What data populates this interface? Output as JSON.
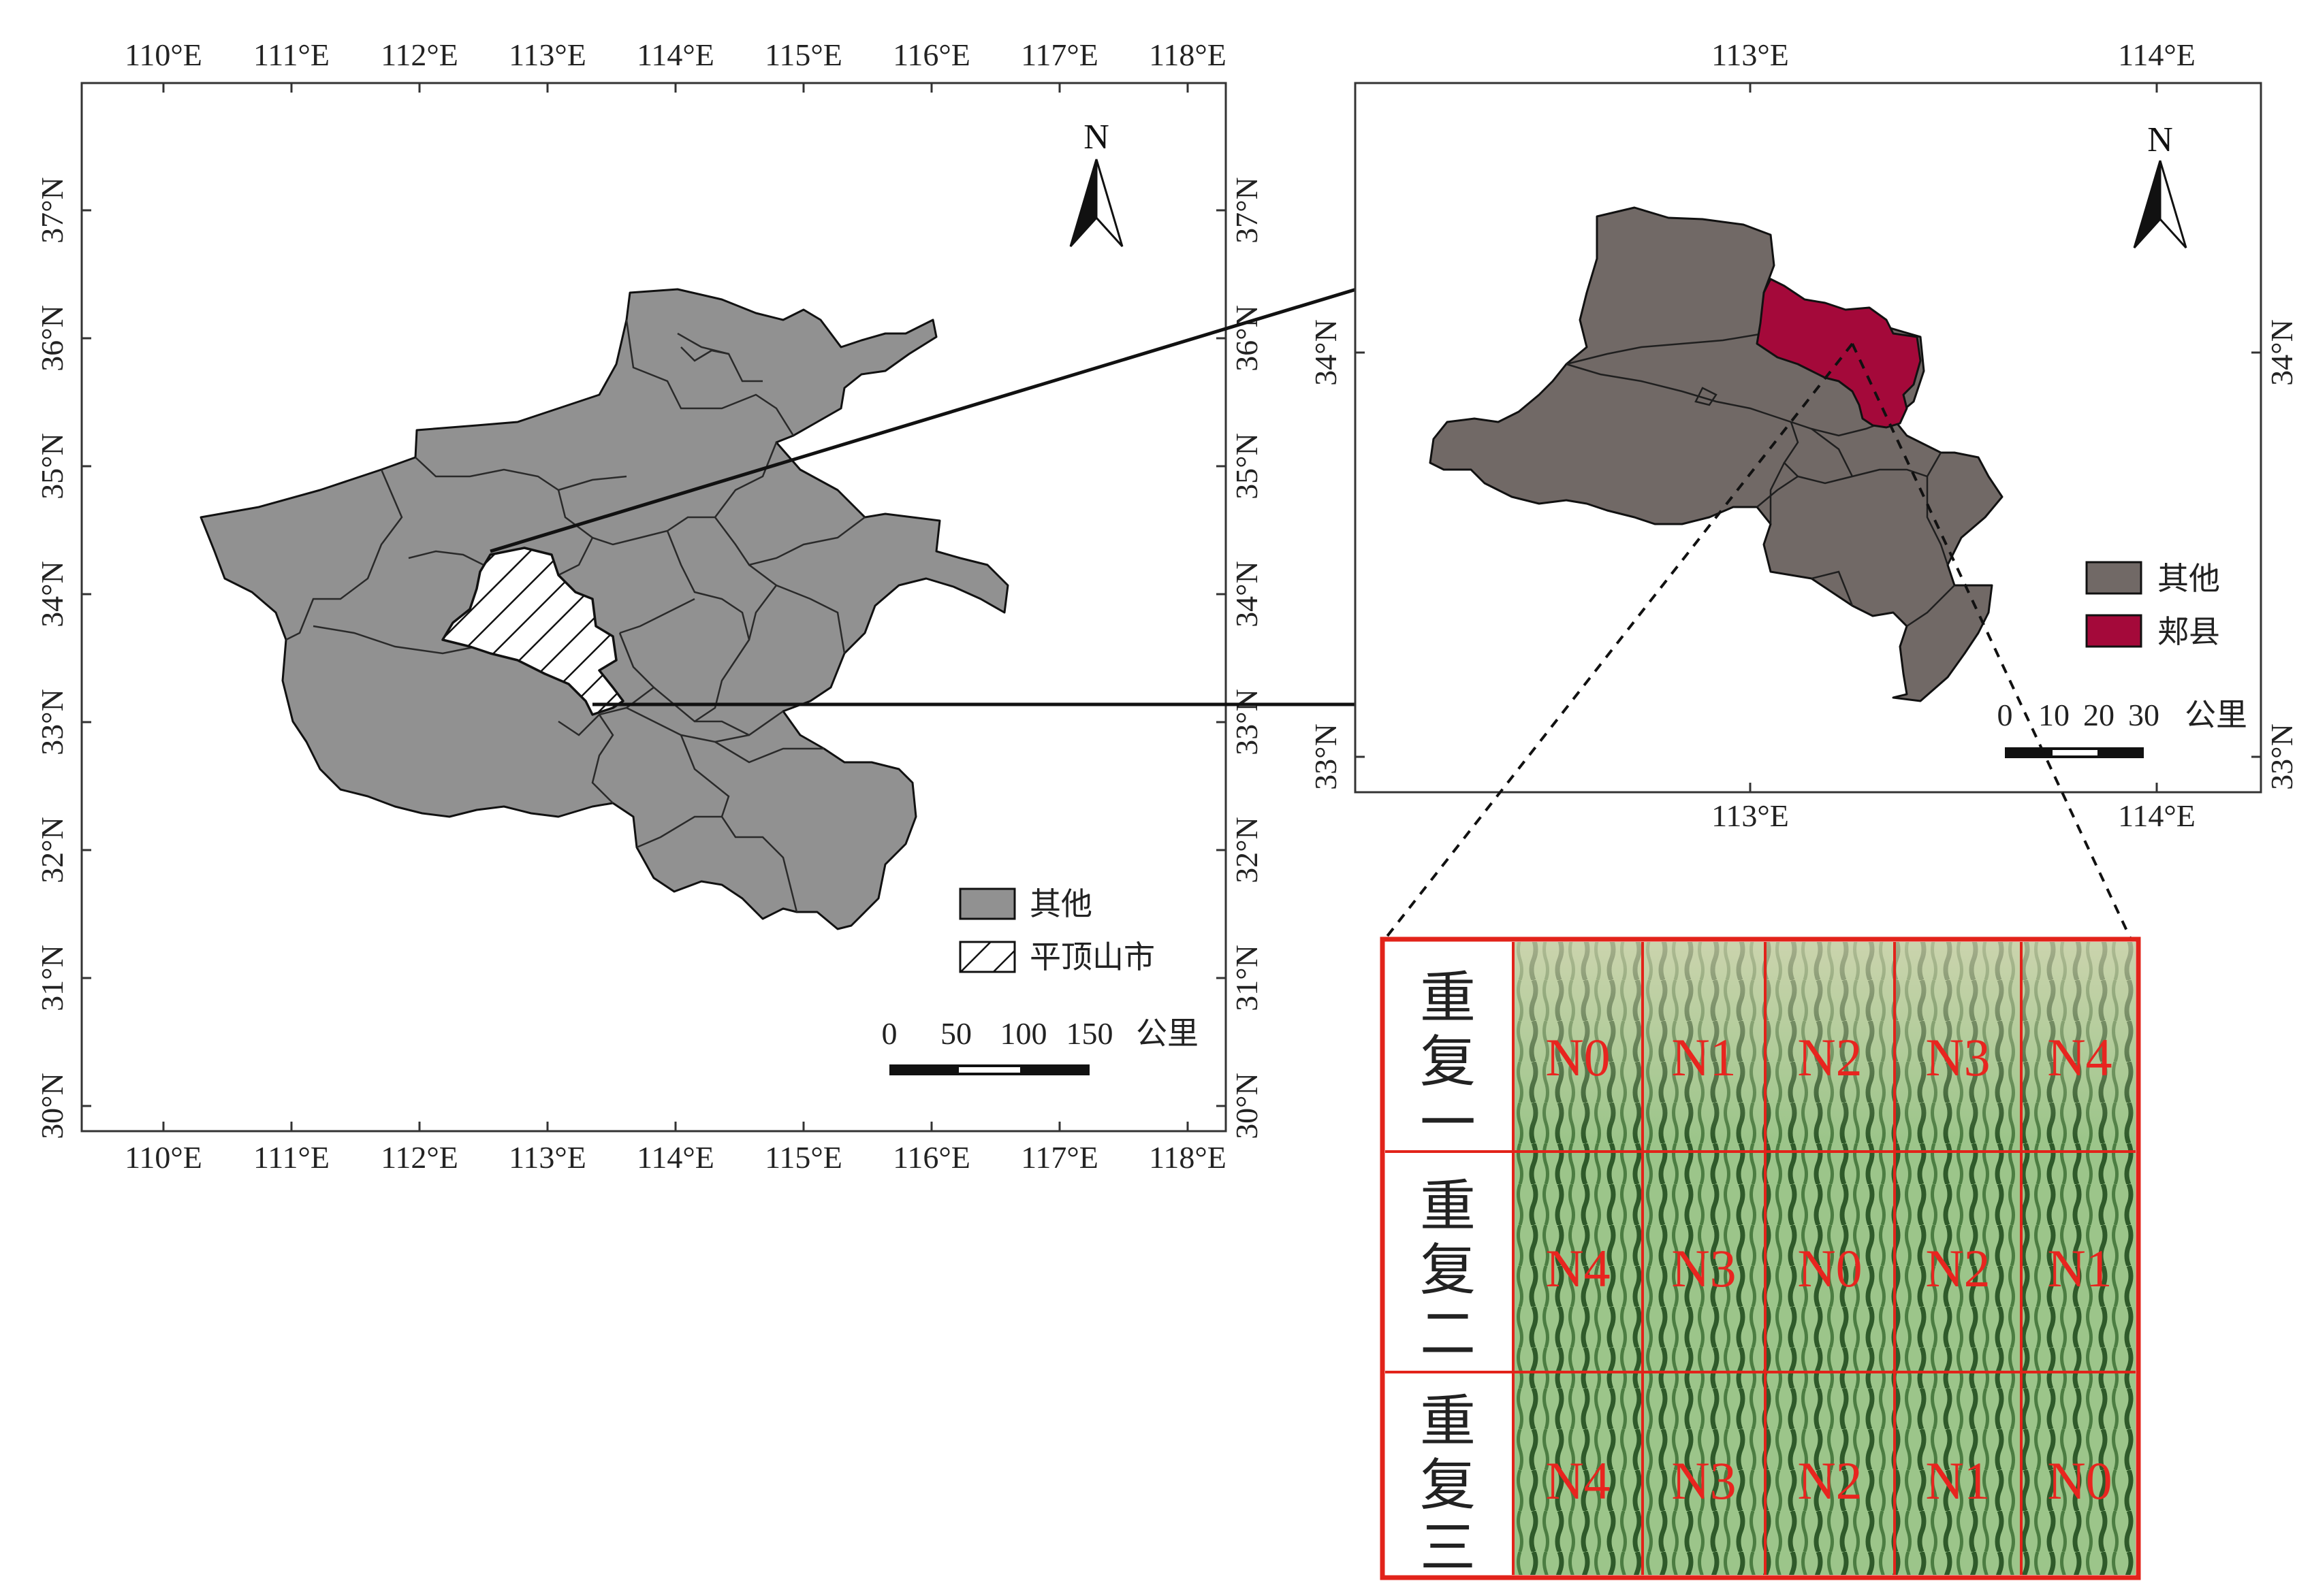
{
  "colors": {
    "other_region": "#919191",
    "zoom_region": "#716966",
    "jiaxian": "#a4093a",
    "grid_line": "#e2231a",
    "field_green": "#8fbf7a",
    "field_row": "#3d6b35",
    "field_soil": "#d7d4b8"
  },
  "left_map": {
    "lon_labels": [
      "110°E",
      "111°E",
      "112°E",
      "113°E",
      "114°E",
      "115°E",
      "116°E",
      "117°E",
      "118°E"
    ],
    "lat_labels": [
      "30°N",
      "31°N",
      "32°N",
      "33°N",
      "34°N",
      "35°N",
      "36°N",
      "37°N"
    ],
    "north": "N",
    "legend": {
      "other": "其他",
      "pingdingshan": "平顶山市"
    },
    "scale": {
      "ticks": [
        "0",
        "50",
        "100",
        "150"
      ],
      "unit": "公里"
    }
  },
  "right_map": {
    "lon_labels": [
      "113°E",
      "114°E"
    ],
    "lat_labels": [
      "33°N",
      "34°N"
    ],
    "north": "N",
    "legend": {
      "other": "其他",
      "jiaxian": "郏县"
    },
    "scale": {
      "ticks": [
        "0",
        "10",
        "20",
        "30"
      ],
      "unit": "公里"
    }
  },
  "field_plots": {
    "rows": [
      {
        "replicate": [
          "重",
          "复",
          "一"
        ],
        "treatments": [
          "N0",
          "N1",
          "N2",
          "N3",
          "N4"
        ]
      },
      {
        "replicate": [
          "重",
          "复",
          "二"
        ],
        "treatments": [
          "N4",
          "N3",
          "N0",
          "N2",
          "N1"
        ]
      },
      {
        "replicate": [
          "重",
          "复",
          "三"
        ],
        "treatments": [
          "N4",
          "N3",
          "N2",
          "N1",
          "N0"
        ]
      }
    ]
  }
}
